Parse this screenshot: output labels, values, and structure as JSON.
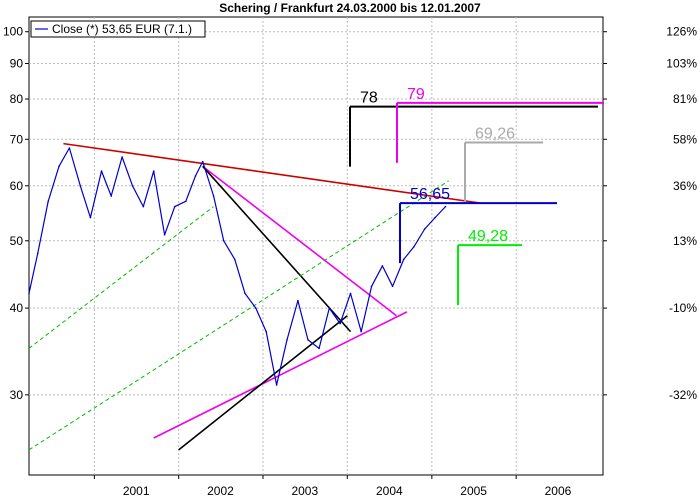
{
  "chart_data": {
    "type": "line",
    "title": "Schering / Frankfurt 24.03.2000 bis 12.01.2007",
    "legend": {
      "label": "Close (*) 53,65 EUR (7.1.)",
      "placement": "top-left",
      "color": "#0000cc"
    },
    "xlabel": "",
    "ylabel": "",
    "y_scale": "log",
    "ylim": [
      23,
      105
    ],
    "x_range": [
      "2000-03-24",
      "2007-01-12"
    ],
    "grid": true,
    "x_ticks": [
      "2001",
      "2002",
      "2003",
      "2004",
      "2005",
      "2006"
    ],
    "y_ticks_left": [
      "30",
      "40",
      "50",
      "60",
      "70",
      "80",
      "90",
      "100"
    ],
    "y_ticks_right": [
      "-32%",
      "-10%",
      "13%",
      "36%",
      "58%",
      "81%",
      "103%",
      "126%"
    ],
    "series": [
      {
        "name": "Close (*) 53,65 EUR (7.1.)",
        "color": "#0000cc",
        "x": [
          "2000-03-24",
          "2000-05-01",
          "2000-06-15",
          "2000-08-01",
          "2000-09-15",
          "2000-11-01",
          "2000-12-15",
          "2001-02-01",
          "2001-03-15",
          "2001-05-01",
          "2001-06-15",
          "2001-08-01",
          "2001-09-15",
          "2001-11-01",
          "2001-12-15",
          "2002-02-01",
          "2002-03-15",
          "2002-04-15",
          "2002-06-01",
          "2002-07-15",
          "2002-09-01",
          "2002-10-15",
          "2002-12-01",
          "2003-01-15",
          "2003-03-01",
          "2003-04-15",
          "2003-06-01",
          "2003-07-15",
          "2003-09-01",
          "2003-10-15",
          "2003-12-01",
          "2004-01-15",
          "2004-03-01",
          "2004-04-15",
          "2004-06-01",
          "2004-07-15",
          "2004-09-01",
          "2004-10-15",
          "2004-12-01",
          "2005-01-15",
          "2005-03-01"
        ],
        "values": [
          42,
          48,
          57,
          64,
          68,
          60,
          54,
          63,
          58,
          66,
          60,
          56,
          63,
          51,
          56,
          57,
          62,
          65,
          58,
          50,
          47,
          42,
          40,
          37,
          31,
          36,
          41,
          36,
          35,
          40,
          38,
          42,
          37,
          43,
          46,
          43,
          47,
          49,
          52,
          54,
          56
        ]
      }
    ],
    "lines": [
      {
        "name": "resistance",
        "color": "#cc0000",
        "from": [
          "2000-08-20",
          69
        ],
        "to": [
          "2005-08-01",
          56.65
        ]
      },
      {
        "name": "trend-upper",
        "color": "#ee00ee",
        "from": [
          "2002-04-15",
          64
        ],
        "to": [
          "2004-08-01",
          39
        ]
      },
      {
        "name": "trend-lower",
        "color": "#ee00ee",
        "from": [
          "2001-09-15",
          26
        ],
        "to": [
          "2004-09-15",
          39.5
        ]
      },
      {
        "name": "triangle-top",
        "color": "#000000",
        "from": [
          "2002-04-15",
          64
        ],
        "to": [
          "2004-01-15",
          37
        ]
      },
      {
        "name": "triangle-bottom",
        "color": "#000000",
        "from": [
          "2002-01-01",
          25
        ],
        "to": [
          "2004-01-01",
          39
        ]
      },
      {
        "name": "channel",
        "color": "#00bb00",
        "from": [
          "2000-03-24",
          25
        ],
        "to": [
          "2005-03-15",
          61
        ]
      },
      {
        "name": "channel",
        "color": "#00bb00",
        "from": [
          "2000-03-24",
          35
        ],
        "to": [
          "2002-06-01",
          56
        ]
      }
    ],
    "annotations": [
      {
        "label": "78",
        "color": "#000000",
        "value": 78
      },
      {
        "label": "79",
        "color": "#ee00ee",
        "value": 79
      },
      {
        "label": "69,26",
        "color": "#aaaaaa",
        "value": 69.26
      },
      {
        "label": "56,65",
        "color": "#0000cc",
        "value": 56.65
      },
      {
        "label": "49,28",
        "color": "#00ee00",
        "value": 49.28
      }
    ]
  }
}
